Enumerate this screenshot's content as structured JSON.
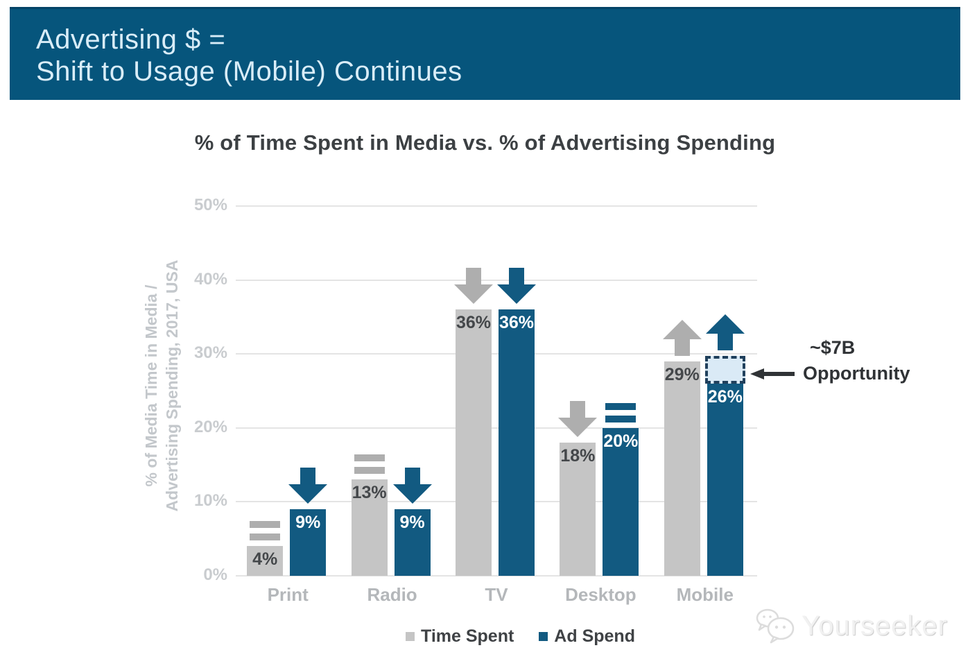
{
  "header": {
    "line1": "Advertising $ =",
    "line2": "Shift to Usage (Mobile) Continues"
  },
  "chart_data": {
    "type": "bar",
    "title": "% of Time Spent in Media vs. % of Advertising Spending",
    "ylabel_line1": "% of Media Time in Media /",
    "ylabel_line2": "Advertising Spending, 2017, USA",
    "yticks": [
      "0%",
      "10%",
      "20%",
      "30%",
      "40%",
      "50%"
    ],
    "ylim": [
      0,
      50
    ],
    "grid": true,
    "legend_position": "bottom",
    "categories": [
      "Print",
      "Radio",
      "TV",
      "Desktop",
      "Mobile"
    ],
    "series": [
      {
        "name": "Time Spent",
        "color": "#c5c5c5",
        "values": [
          4,
          13,
          36,
          18,
          29
        ],
        "labels": [
          "4%",
          "13%",
          "36%",
          "18%",
          "29%"
        ],
        "indicators": [
          "equal",
          "equal",
          "down",
          "down",
          "up"
        ]
      },
      {
        "name": "Ad Spend",
        "color": "#125a81",
        "values": [
          9,
          9,
          36,
          20,
          26
        ],
        "labels": [
          "9%",
          "9%",
          "36%",
          "20%",
          "26%"
        ],
        "indicators": [
          "down",
          "down",
          "down",
          "equal",
          "up"
        ]
      }
    ],
    "annotation": {
      "line1": "~$7B",
      "line2": "Opportunity",
      "extension": {
        "category": "Mobile",
        "series": "Ad Spend",
        "from": 26,
        "to": 29.7
      }
    }
  },
  "legend": {
    "items": [
      {
        "label": "Time Spent",
        "color": "#c5c5c5"
      },
      {
        "label": "Ad Spend",
        "color": "#125a81"
      }
    ]
  },
  "watermark": {
    "text": "Yourseeker",
    "icon": "chat-bubbles-logo"
  },
  "colors": {
    "header_bg": "#06557c",
    "bar_gray": "#c5c5c5",
    "bar_blue": "#125a81",
    "indicator_gray": "#aeaeae",
    "indicator_blue": "#125a81",
    "grid": "#e4e4e4",
    "value_dark": "#44474a",
    "value_light": "#ffffff",
    "dashed_fill": "#daeaf6",
    "dashed_border": "#20405c",
    "annotation_text": "#303336"
  }
}
